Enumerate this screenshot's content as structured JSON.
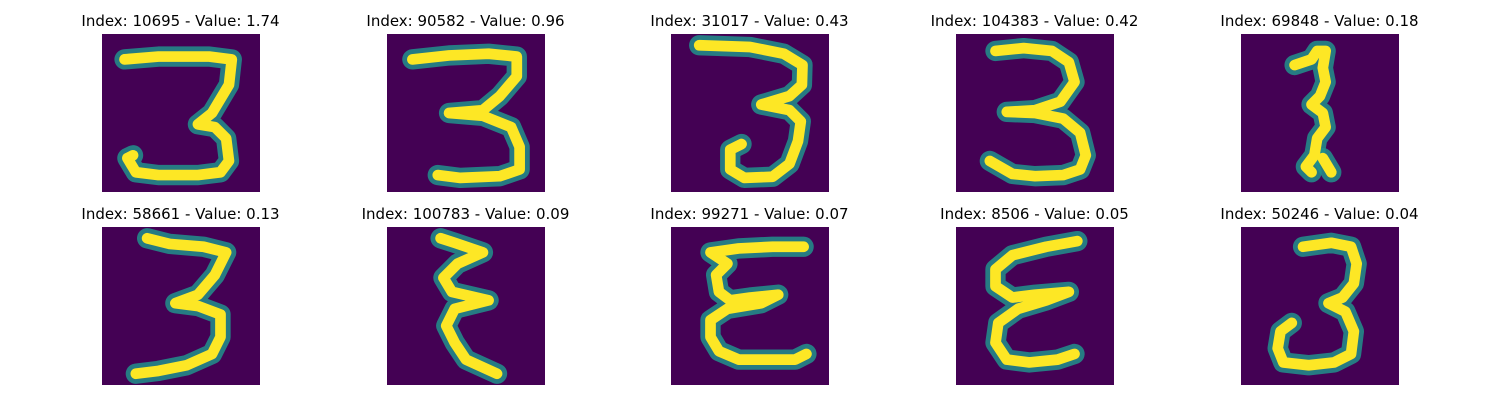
{
  "figure": {
    "background_color": "#440154",
    "stroke_color": "#fde725",
    "halo_color": "#21918c",
    "panels": [
      {
        "title": "Index: 10695 - Value: 1.74"
      },
      {
        "title": "Index: 90582 - Value: 0.96"
      },
      {
        "title": "Index: 31017 - Value: 0.43"
      },
      {
        "title": "Index: 104383 - Value: 0.42"
      },
      {
        "title": "Index: 69848 - Value: 0.18"
      },
      {
        "title": "Index: 58661 - Value: 0.13"
      },
      {
        "title": "Index: 100783 - Value: 0.09"
      },
      {
        "title": "Index: 99271 - Value: 0.07"
      },
      {
        "title": "Index: 8506 - Value: 0.05"
      },
      {
        "title": "Index: 50246 - Value: 0.04"
      }
    ]
  }
}
